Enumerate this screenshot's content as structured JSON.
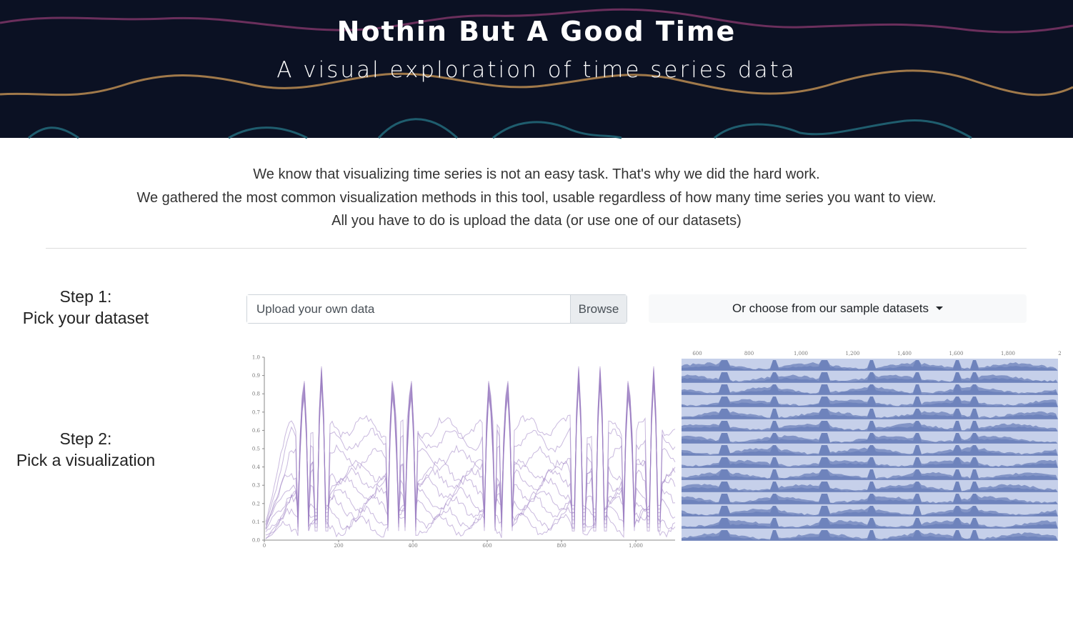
{
  "header": {
    "title": "Nothin But A Good Time",
    "subtitle": "A visual exploration of time series data"
  },
  "intro": {
    "line1": "We know that visualizing time series is not an easy task. That's why we did the hard work.",
    "line2": "We gathered the most common visualization methods in this tool, usable regardless of how many time series you want to view.",
    "line3": "All you have to do is upload the data (or use one of our datasets)"
  },
  "step1": {
    "title": "Step 1:",
    "subtitle": "Pick your dataset",
    "upload_placeholder": "Upload your own data",
    "browse_label": "Browse",
    "sample_datasets_label": "Or choose from our sample datasets"
  },
  "step2": {
    "title": "Step 2:",
    "subtitle": "Pick a visualization"
  },
  "visualizations": {
    "line_chart": {
      "y_ticks": [
        "0.0",
        "0.1",
        "0.2",
        "0.3",
        "0.4",
        "0.5",
        "0.6",
        "0.7",
        "0.8",
        "0.9",
        "1.0"
      ],
      "x_ticks": [
        "0",
        "200",
        "400",
        "600",
        "800",
        "1,000"
      ],
      "color": "#9c7fc2"
    },
    "horizon_chart": {
      "x_ticks": [
        "600",
        "800",
        "1,000",
        "1,200",
        "1,400",
        "1,600",
        "1,800",
        "2"
      ],
      "color": "#4a63a8"
    }
  },
  "colors": {
    "hero_bg": "#0b1123",
    "wave_plum": "#6b2f5c",
    "wave_gold": "#a0794a",
    "wave_teal": "#1f5d6e"
  }
}
